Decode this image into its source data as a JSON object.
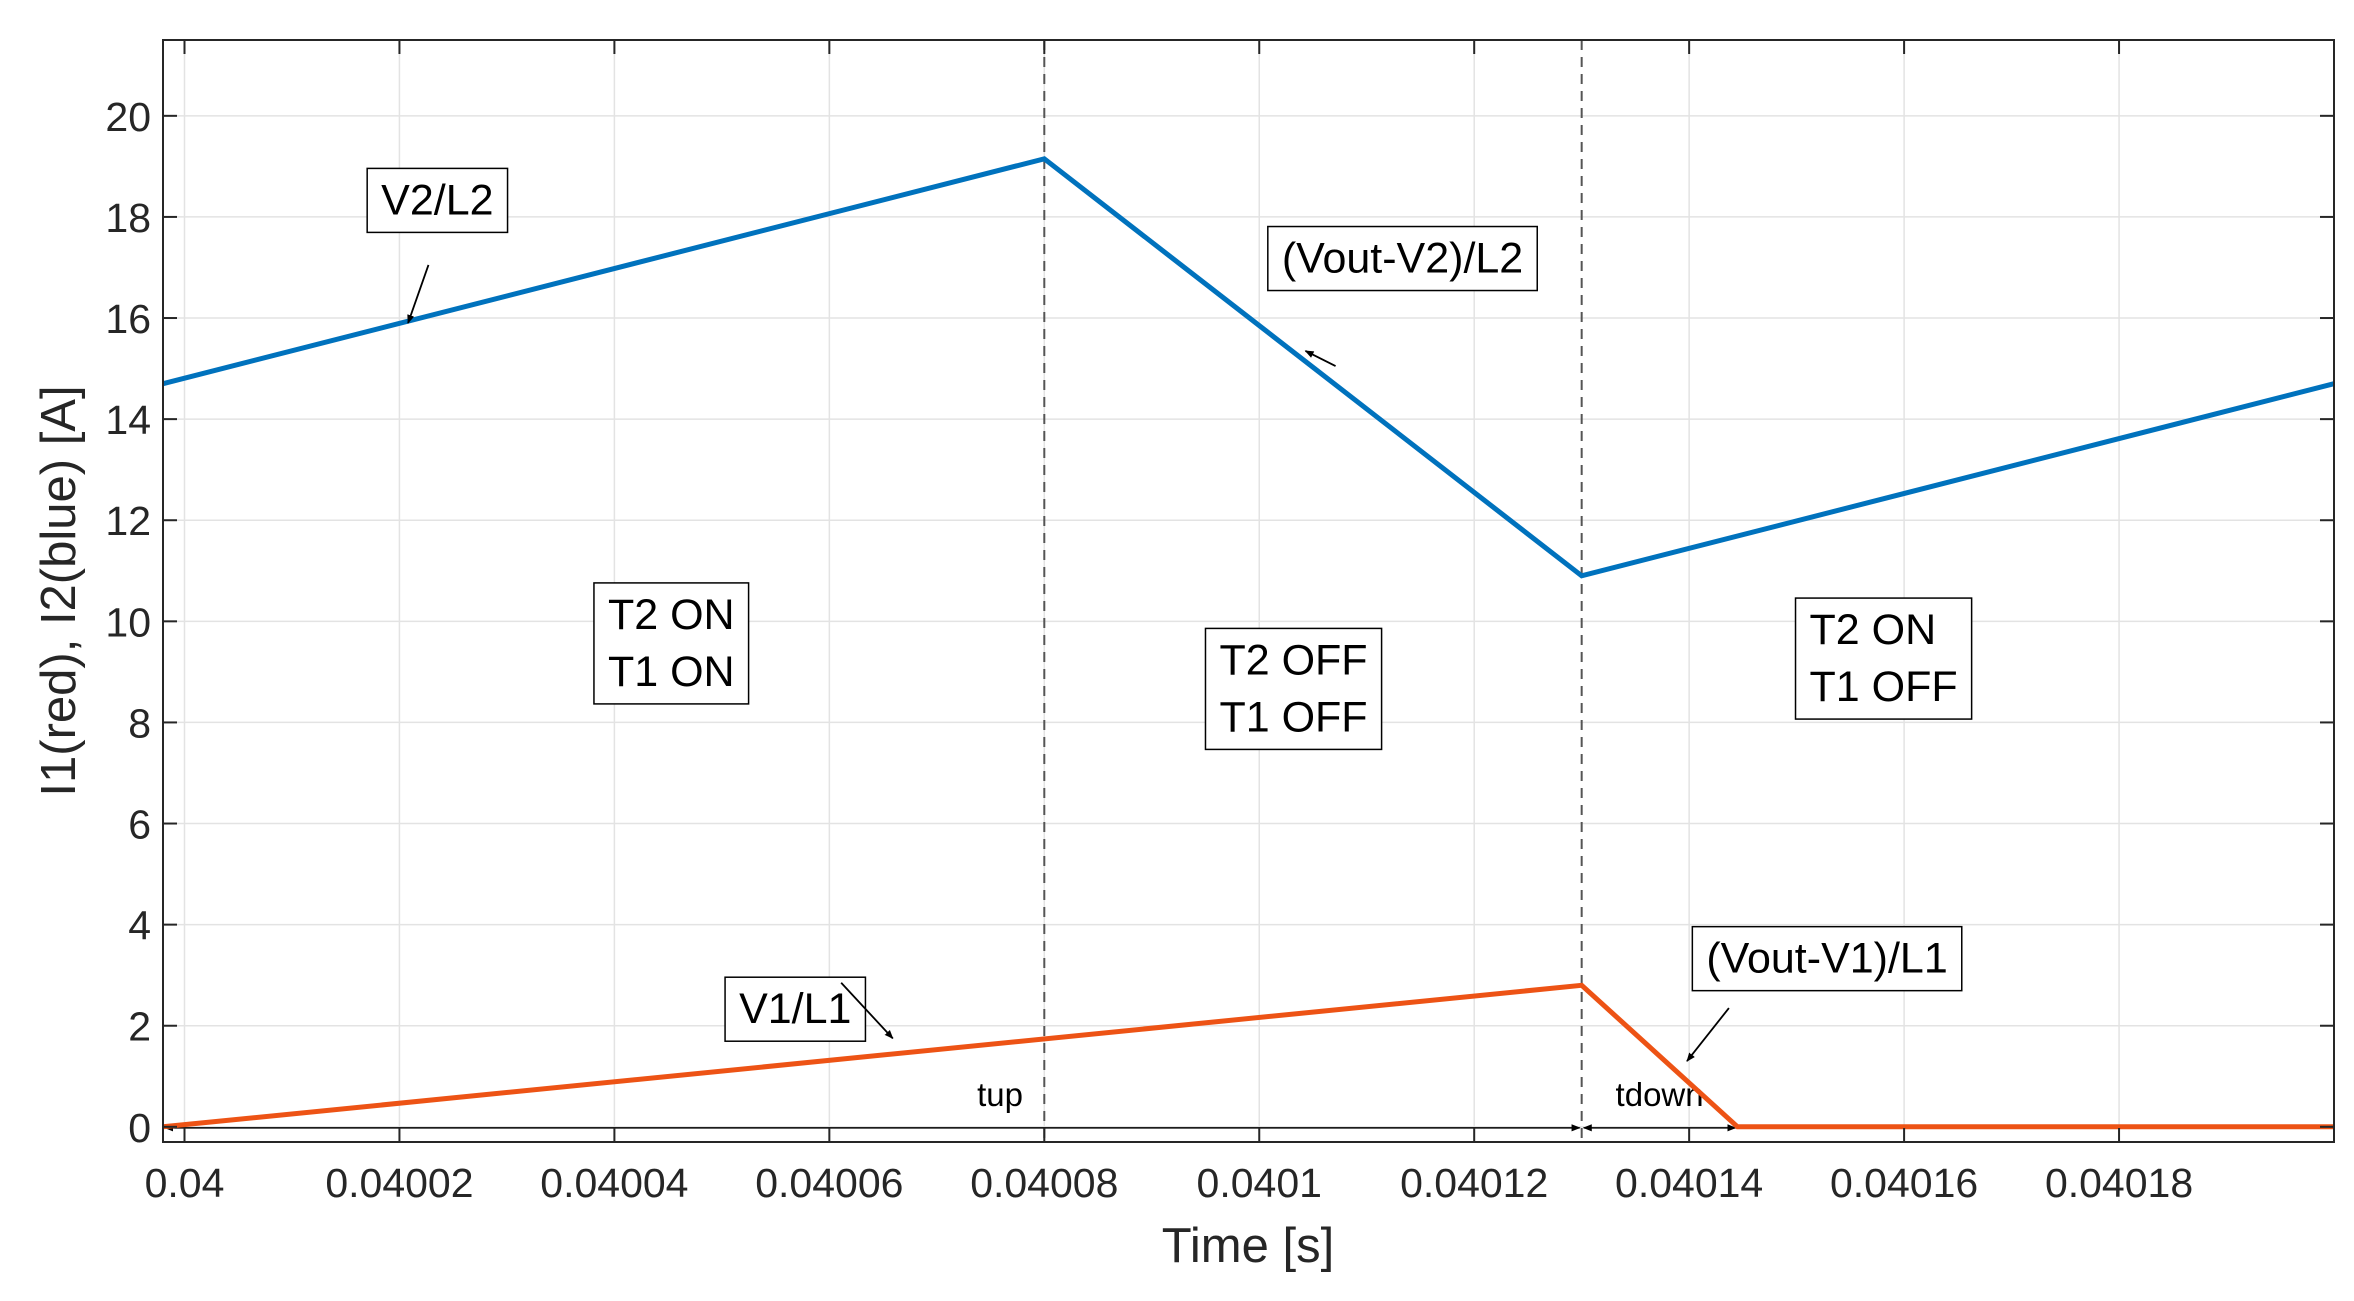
{
  "chart_data": {
    "type": "line",
    "title": "",
    "xlabel": "Time [s]",
    "ylabel": "I1(red), I2(blue) [A]",
    "xlim": [
      0.039998,
      0.0402
    ],
    "ylim": [
      -0.3,
      21.5
    ],
    "grid": true,
    "x_ticks": [
      0.04,
      0.04002,
      0.04004,
      0.04006,
      0.04008,
      0.0401,
      0.04012,
      0.04014,
      0.04016,
      0.04018
    ],
    "x_tick_labels": [
      "0.04",
      "0.04002",
      "0.04004",
      "0.04006",
      "0.04008",
      "0.0401",
      "0.04012",
      "0.04014",
      "0.04016",
      "0.04018"
    ],
    "y_ticks": [
      0,
      2,
      4,
      6,
      8,
      10,
      12,
      14,
      16,
      18,
      20
    ],
    "y_tick_labels": [
      "0",
      "2",
      "4",
      "6",
      "8",
      "10",
      "12",
      "14",
      "16",
      "18",
      "20"
    ],
    "series": [
      {
        "name": "I2",
        "color": "#0072BD",
        "x": [
          0.039998,
          0.04008,
          0.04013,
          0.0402
        ],
        "y": [
          14.7,
          19.15,
          10.9,
          14.7
        ]
      },
      {
        "name": "I1",
        "color": "#ED5315",
        "x": [
          0.039998,
          0.04013,
          0.0401445,
          0.0402
        ],
        "y": [
          0.0,
          2.8,
          0.0,
          0.0
        ]
      }
    ],
    "vlines": [
      0.04008,
      0.04013
    ],
    "annotations": [
      {
        "text": [
          "V2/L2"
        ],
        "box": [
          0.0400183,
          18.05
        ],
        "arrow": [
          0.0400227,
          17.05,
          0.0400208,
          15.9
        ]
      },
      {
        "text": [
          "(Vout-V2)/L2"
        ],
        "box": [
          0.0401021,
          16.9
        ],
        "arrow": [
          0.0401071,
          15.05,
          0.0401043,
          15.35
        ]
      },
      {
        "text": [
          "T2 ON",
          "T1 ON"
        ],
        "box": [
          0.0400394,
          9.85
        ]
      },
      {
        "text": [
          "T2 OFF",
          "T1 OFF"
        ],
        "box": [
          0.0400963,
          8.95
        ]
      },
      {
        "text": [
          "T2 ON",
          "T1 OFF"
        ],
        "box": [
          0.0401512,
          9.55
        ]
      },
      {
        "text": [
          "V1/L1"
        ],
        "box": [
          0.0400516,
          2.05
        ],
        "arrow": [
          0.0400611,
          2.85,
          0.0400659,
          1.75
        ]
      },
      {
        "text": [
          "(Vout-V1)/L1"
        ],
        "box": [
          0.0401416,
          3.05
        ],
        "arrow": [
          0.0401437,
          2.35,
          0.0401398,
          1.3
        ]
      }
    ],
    "dimension_marks": [
      {
        "label": "tup",
        "from": 0.039998,
        "to": 0.04013,
        "y": 0.0
      },
      {
        "label": "tdown",
        "from": 0.04013,
        "to": 0.0401445,
        "y": 0.0
      }
    ]
  }
}
